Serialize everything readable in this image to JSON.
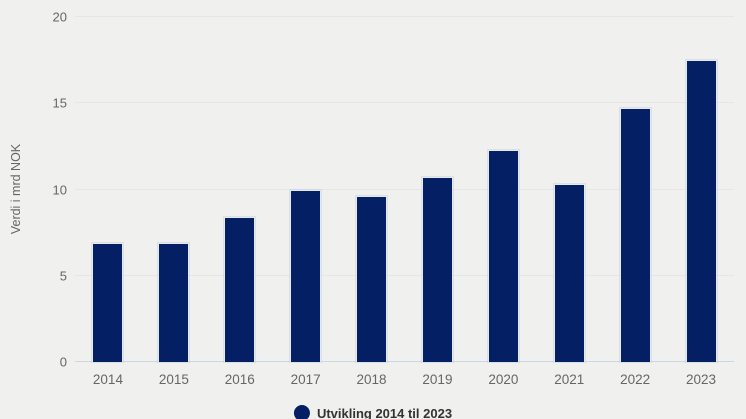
{
  "chart_data": {
    "type": "bar",
    "title": "",
    "categories": [
      "2014",
      "2015",
      "2016",
      "2017",
      "2018",
      "2019",
      "2020",
      "2021",
      "2022",
      "2023"
    ],
    "values": [
      6.9,
      6.9,
      8.4,
      10.0,
      9.6,
      10.7,
      12.3,
      10.3,
      14.7,
      17.5
    ],
    "series_name": "Utvikling 2014 til 2023",
    "xlabel": "",
    "ylabel": "Verdi i mrd NOK",
    "ylim": [
      0,
      20
    ],
    "yticks": [
      0,
      5,
      10,
      15,
      20
    ],
    "grid": true,
    "legend_position": "bottom-center",
    "colors": {
      "bar": "#041f64",
      "background": "#f0f1ee",
      "gridline": "#e6e6e6",
      "axis_line": "#ccd6eb",
      "axis_label": "#666666",
      "legend_text": "#333333"
    }
  },
  "legend": {
    "label": "Utvikling 2014 til 2023"
  }
}
